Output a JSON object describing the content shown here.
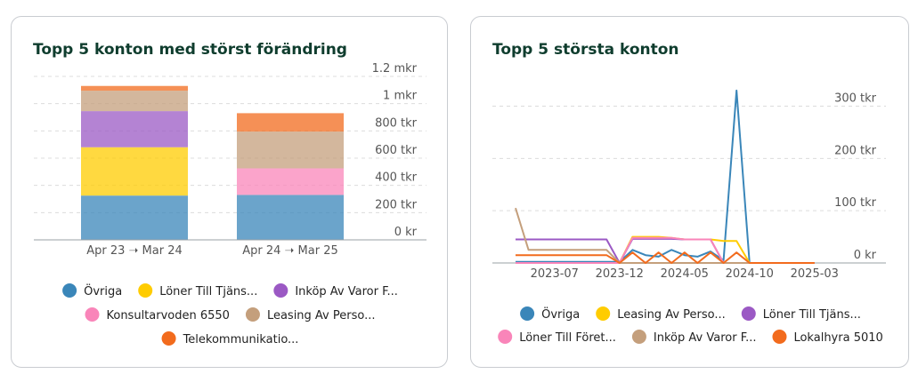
{
  "cards": [
    {
      "title": "Topp 5 konton med störst förändring"
    },
    {
      "title": "Topp 5 största konton"
    }
  ],
  "chart_data": [
    {
      "type": "bar",
      "stacked": true,
      "title": "Topp 5 konton med störst förändring",
      "categories": [
        "Apr 23 ➝ Mar 24",
        "Apr 24 ➝ Mar 25"
      ],
      "ylim": [
        0,
        1200000
      ],
      "yticks": [
        0,
        200000,
        400000,
        600000,
        800000,
        1000000,
        1200000
      ],
      "ytick_labels": [
        "0 kr",
        "200 tkr",
        "400 tkr",
        "600 tkr",
        "800 tkr",
        "1 mkr",
        "1.2 mkr"
      ],
      "grid": true,
      "legend_position": "bottom",
      "series": [
        {
          "name": "Övriga",
          "color": "#3a86b9",
          "values": [
            325000,
            330000
          ]
        },
        {
          "name": "Löner Till Tjäns...",
          "color": "#ffcc00",
          "values": [
            355000,
            0
          ]
        },
        {
          "name": "Inköp Av Varor F...",
          "color": "#9b59c4",
          "values": [
            265000,
            0
          ]
        },
        {
          "name": "Konsultarvoden 6550",
          "color": "#f985b9",
          "values": [
            0,
            195000
          ]
        },
        {
          "name": "Leasing Av Perso...",
          "color": "#c49f7c",
          "values": [
            150000,
            270000
          ]
        },
        {
          "name": "Telekommunikatio...",
          "color": "#f26b1d",
          "values": [
            35000,
            135000
          ]
        }
      ]
    },
    {
      "type": "line",
      "title": "Topp 5 största konton",
      "x": [
        "2023-04",
        "2023-05",
        "2023-06",
        "2023-07",
        "2023-08",
        "2023-09",
        "2023-10",
        "2023-11",
        "2023-12",
        "2024-01",
        "2024-02",
        "2024-03",
        "2024-04",
        "2024-05",
        "2024-06",
        "2024-07",
        "2024-08",
        "2024-09",
        "2024-10",
        "2024-11",
        "2024-12",
        "2025-01",
        "2025-02",
        "2025-03"
      ],
      "xtick_labels": [
        "2023-07",
        "2023-12",
        "2024-05",
        "2024-10",
        "2025-03"
      ],
      "ylim": [
        0,
        340000
      ],
      "yticks": [
        0,
        100000,
        200000,
        300000
      ],
      "ytick_labels": [
        "0 kr",
        "100 tkr",
        "200 tkr",
        "300 tkr"
      ],
      "grid": true,
      "legend_position": "bottom",
      "series": [
        {
          "name": "Övriga",
          "color": "#3a86b9",
          "values": [
            2000,
            2000,
            2000,
            2000,
            2000,
            2000,
            2000,
            2000,
            2000,
            25000,
            15000,
            12000,
            25000,
            15000,
            12000,
            22000,
            5000,
            330000,
            0,
            0,
            0,
            0,
            0,
            0
          ]
        },
        {
          "name": "Leasing Av Perso...",
          "color": "#ffcc00",
          "values": [
            0,
            0,
            0,
            0,
            0,
            0,
            0,
            0,
            0,
            50000,
            50000,
            50000,
            48000,
            45000,
            45000,
            45000,
            42000,
            42000,
            0,
            0,
            0,
            0,
            0,
            0
          ]
        },
        {
          "name": "Löner Till Tjäns...",
          "color": "#9b59c4",
          "values": [
            45000,
            45000,
            45000,
            45000,
            45000,
            45000,
            45000,
            45000,
            0,
            46000,
            46000,
            46000,
            46000,
            45000,
            45000,
            45000,
            0,
            0,
            0,
            0,
            0,
            0,
            0,
            0
          ]
        },
        {
          "name": "Löner Till Föret...",
          "color": "#f985b9",
          "values": [
            0,
            0,
            0,
            0,
            0,
            0,
            0,
            0,
            0,
            48000,
            48000,
            48000,
            48000,
            45000,
            45000,
            45000,
            0,
            0,
            0,
            0,
            0,
            0,
            0,
            0
          ]
        },
        {
          "name": "Inköp Av Varor F...",
          "color": "#c49f7c",
          "values": [
            105000,
            25000,
            25000,
            25000,
            25000,
            25000,
            25000,
            25000,
            0,
            0,
            0,
            0,
            0,
            0,
            0,
            0,
            0,
            0,
            0,
            0,
            0,
            0,
            0,
            0
          ]
        },
        {
          "name": "Lokalhyra 5010",
          "color": "#f26b1d",
          "values": [
            15000,
            15000,
            15000,
            15000,
            15000,
            15000,
            15000,
            15000,
            0,
            20000,
            0,
            20000,
            0,
            20000,
            0,
            20000,
            0,
            20000,
            0,
            0,
            0,
            0,
            0,
            0
          ]
        }
      ]
    }
  ]
}
